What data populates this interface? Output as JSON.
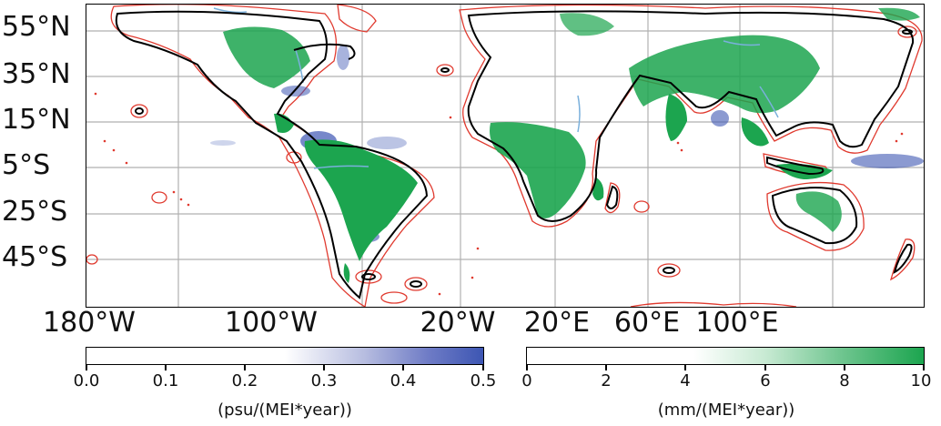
{
  "map": {
    "latitude_labels": [
      "55°N",
      "35°N",
      "15°N",
      "5°S",
      "25°S",
      "45°S"
    ],
    "longitude_labels": [
      "180°W",
      "100°W",
      "20°W",
      "20°E",
      "60°E",
      "100°E"
    ],
    "layers": [
      "salinity-trend",
      "precipitation-trend",
      "coastline",
      "red-contour",
      "rivers"
    ],
    "colors": {
      "land_green": "#1ca54f",
      "salinity_blue": "#3d56b3",
      "coast": "#000000",
      "contour": "#e03a2f",
      "river": "#7ab0dc",
      "grid": "#b0b0b0"
    }
  },
  "colorbars": {
    "salinity": {
      "ticks": [
        "0.0",
        "0.1",
        "0.2",
        "0.3",
        "0.4",
        "0.5"
      ],
      "values": [
        0.0,
        0.1,
        0.2,
        0.3,
        0.4,
        0.5
      ],
      "min": 0.0,
      "max": 0.5,
      "unit_label": "(psu/(MEI*year))",
      "color_low": "#ffffff",
      "color_high": "#3d56b3"
    },
    "precipitation": {
      "ticks": [
        "0",
        "2",
        "4",
        "6",
        "8",
        "10"
      ],
      "values": [
        0,
        2,
        4,
        6,
        8,
        10
      ],
      "min": 0,
      "max": 10,
      "unit_label": "(mm/(MEI*year))",
      "color_low": "#ffffff",
      "color_high": "#1ca54f"
    }
  }
}
